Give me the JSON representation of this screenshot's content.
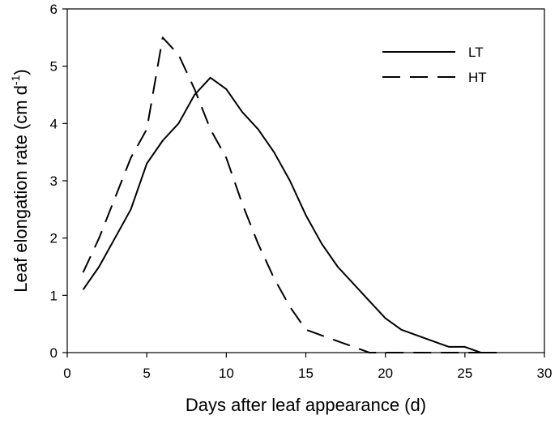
{
  "chart_data": {
    "type": "line",
    "xlabel": "Days after leaf appearance (d)",
    "ylabel_main": "Leaf elongation rate (cm d",
    "ylabel_sup": "-1",
    "ylabel_close": ")",
    "xlim": [
      0,
      30
    ],
    "ylim": [
      0,
      6
    ],
    "xticks": [
      0,
      5,
      10,
      15,
      20,
      25,
      30
    ],
    "yticks": [
      0,
      1,
      2,
      3,
      4,
      5,
      6
    ],
    "grid": false,
    "legend_position": "top-right",
    "series": [
      {
        "name": "LT",
        "line_style": "solid",
        "color": "#000000",
        "x": [
          1,
          2,
          3,
          4,
          5,
          6,
          7,
          8,
          9,
          10,
          11,
          12,
          13,
          14,
          15,
          16,
          17,
          18,
          19,
          20,
          21,
          22,
          23,
          24,
          25,
          26,
          27
        ],
        "y": [
          1.1,
          1.5,
          2.0,
          2.5,
          3.3,
          3.7,
          4.0,
          4.5,
          4.8,
          4.6,
          4.2,
          3.9,
          3.5,
          3.0,
          2.4,
          1.9,
          1.5,
          1.2,
          0.9,
          0.6,
          0.4,
          0.3,
          0.2,
          0.1,
          0.1,
          0.0,
          0.0
        ]
      },
      {
        "name": "HT",
        "line_style": "dashed",
        "color": "#000000",
        "x": [
          1,
          2,
          3,
          4,
          5,
          6,
          7,
          8,
          9,
          10,
          11,
          12,
          13,
          14,
          15,
          16,
          17,
          18,
          19,
          20,
          21,
          22,
          23,
          24,
          25,
          26,
          27
        ],
        "y": [
          1.4,
          2.0,
          2.7,
          3.4,
          3.9,
          5.5,
          5.2,
          4.6,
          3.9,
          3.4,
          2.6,
          1.9,
          1.3,
          0.8,
          0.4,
          0.3,
          0.2,
          0.1,
          0.0,
          0.0,
          0.0,
          0.0,
          0.0,
          0.0,
          0.0,
          0.0,
          0.0
        ]
      }
    ]
  }
}
